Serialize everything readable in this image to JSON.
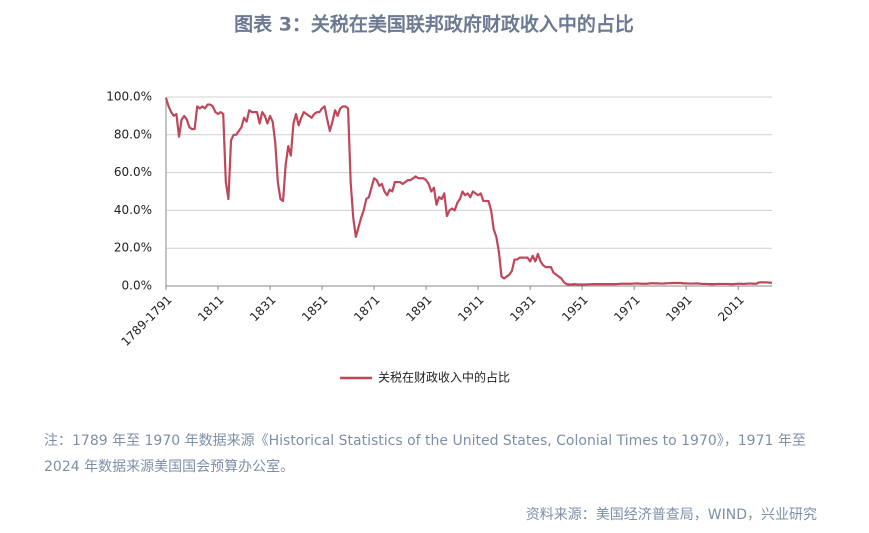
{
  "chart_data": {
    "type": "line",
    "title": "图表 3：关税在美国联邦政府财政收入中的占比",
    "categories": [
      "1789-1791",
      null,
      null,
      null,
      null,
      null,
      null,
      null,
      null,
      null,
      null,
      null,
      null,
      null,
      null,
      null,
      null,
      null,
      null,
      null,
      "1811",
      null,
      null,
      null,
      null,
      null,
      null,
      null,
      null,
      null,
      null,
      null,
      null,
      null,
      null,
      null,
      null,
      null,
      null,
      null,
      "1831",
      null,
      null,
      null,
      null,
      null,
      null,
      null,
      null,
      null,
      null,
      null,
      null,
      null,
      null,
      null,
      null,
      null,
      null,
      null,
      "1851",
      null,
      null,
      null,
      null,
      null,
      null,
      null,
      null,
      null,
      null,
      null,
      null,
      null,
      null,
      null,
      null,
      null,
      null,
      null,
      "1871",
      null,
      null,
      null,
      null,
      null,
      null,
      null,
      null,
      null,
      null,
      null,
      null,
      null,
      null,
      null,
      null,
      null,
      null,
      null,
      "1891",
      null,
      null,
      null,
      null,
      null,
      null,
      null,
      null,
      null,
      null,
      null,
      null,
      null,
      null,
      null,
      null,
      null,
      null,
      null,
      "1911",
      null,
      null,
      null,
      null,
      null,
      null,
      null,
      null,
      null,
      null,
      null,
      null,
      null,
      null,
      null,
      null,
      null,
      null,
      null,
      "1931",
      null,
      null,
      null,
      null,
      null,
      null,
      null,
      null,
      null,
      null,
      null,
      null,
      null,
      null,
      null,
      null,
      null,
      null,
      null,
      "1951",
      null,
      null,
      null,
      null,
      null,
      null,
      null,
      null,
      null,
      null,
      null,
      null,
      null,
      null,
      null,
      null,
      null,
      null,
      null,
      "1971",
      null,
      null,
      null,
      null,
      null,
      null,
      null,
      null,
      null,
      null,
      null,
      null,
      null,
      null,
      null,
      null,
      null,
      null,
      null,
      "1991",
      null,
      null,
      null,
      null,
      null,
      null,
      null,
      null,
      null,
      null,
      null,
      null,
      null,
      null,
      null,
      null,
      null,
      null,
      null,
      "2011",
      null,
      null,
      null,
      null,
      null,
      null,
      null,
      null,
      null,
      null,
      null,
      null,
      null
    ],
    "series": [
      {
        "name": "关税在财政收入中的占比",
        "color": "#c0475a",
        "values": [
          99.5,
          95,
          92,
          90,
          91,
          79,
          88,
          90,
          88,
          84,
          83,
          83,
          95,
          94,
          95,
          94,
          96,
          96,
          95,
          92,
          91,
          92,
          91,
          55,
          46,
          77,
          80,
          80,
          82,
          84,
          89,
          87,
          93,
          92,
          92,
          92,
          86,
          92,
          90,
          86,
          90,
          87,
          76,
          55,
          46,
          45,
          64,
          74,
          69,
          86,
          91,
          85,
          89,
          92,
          91,
          90,
          89,
          91,
          92,
          92,
          94,
          95,
          88,
          82,
          87,
          93,
          90,
          94,
          95,
          95,
          94,
          55,
          36,
          26,
          31,
          36,
          40,
          46,
          47,
          52,
          57,
          56,
          53,
          54,
          50,
          48,
          51,
          50,
          55,
          55,
          55,
          54,
          55,
          56,
          56,
          57,
          58,
          57,
          57,
          57,
          56,
          54,
          50,
          52,
          43,
          47,
          46,
          49,
          37,
          40,
          41,
          40,
          44,
          46,
          50,
          48,
          49,
          47,
          50,
          49,
          48,
          49,
          45,
          45,
          45,
          40,
          30,
          26,
          18,
          5,
          4,
          5,
          6,
          8,
          14,
          14,
          15,
          15,
          15,
          15,
          13,
          16,
          13,
          17,
          13,
          11,
          10,
          10,
          10,
          7,
          6,
          5,
          4,
          2,
          1,
          0.8,
          0.8,
          1,
          0.8,
          0.8,
          0.8,
          0.8,
          0.9,
          0.9,
          1,
          1,
          1,
          1,
          1,
          1,
          1,
          1,
          1,
          1,
          1.1,
          1.2,
          1.2,
          1.2,
          1.2,
          1.2,
          1.3,
          1.4,
          1.3,
          1.2,
          1.2,
          1.2,
          1.4,
          1.5,
          1.4,
          1.4,
          1.3,
          1.3,
          1.4,
          1.5,
          1.5,
          1.6,
          1.6,
          1.6,
          1.6,
          1.4,
          1.4,
          1.3,
          1.3,
          1.3,
          1.4,
          1.3,
          1.1,
          1.1,
          1.1,
          1,
          1,
          1,
          1.1,
          1.1,
          1.1,
          1.1,
          1.1,
          1,
          1,
          1.1,
          1.2,
          1.2,
          1.1,
          1.2,
          1.3,
          1.3,
          1.2,
          1.2,
          1.9,
          2,
          1.9,
          1.9,
          1.8,
          1.7
        ]
      }
    ],
    "ylim": [
      0,
      100
    ],
    "yticks": [
      {
        "value": 0,
        "label": "0.0%"
      },
      {
        "value": 20,
        "label": "20.0%"
      },
      {
        "value": 40,
        "label": "40.0%"
      },
      {
        "value": 60,
        "label": "60.0%"
      },
      {
        "value": 80,
        "label": "80.0%"
      },
      {
        "value": 100,
        "label": "100.0%"
      }
    ],
    "grid": true
  },
  "note": "注：1789 年至 1970 年数据来源《Historical Statistics of the United States, Colonial Times to 1970》，1971 年至 2024 年数据来源美国国会预算办公室。",
  "source": "资料来源：美国经济普查局，WIND，兴业研究"
}
